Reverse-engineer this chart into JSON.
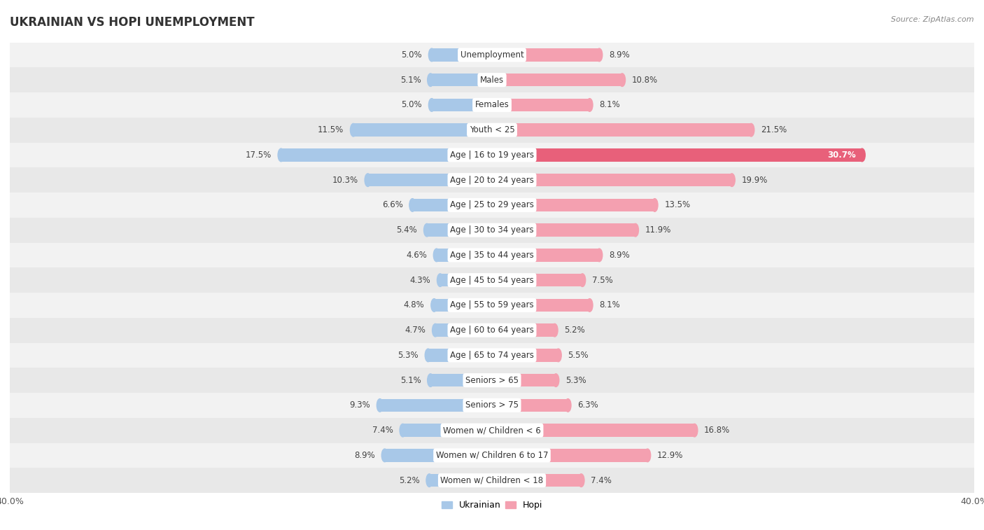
{
  "title": "UKRAINIAN VS HOPI UNEMPLOYMENT",
  "source": "Source: ZipAtlas.com",
  "categories": [
    "Unemployment",
    "Males",
    "Females",
    "Youth < 25",
    "Age | 16 to 19 years",
    "Age | 20 to 24 years",
    "Age | 25 to 29 years",
    "Age | 30 to 34 years",
    "Age | 35 to 44 years",
    "Age | 45 to 54 years",
    "Age | 55 to 59 years",
    "Age | 60 to 64 years",
    "Age | 65 to 74 years",
    "Seniors > 65",
    "Seniors > 75",
    "Women w/ Children < 6",
    "Women w/ Children 6 to 17",
    "Women w/ Children < 18"
  ],
  "ukrainian": [
    5.0,
    5.1,
    5.0,
    11.5,
    17.5,
    10.3,
    6.6,
    5.4,
    4.6,
    4.3,
    4.8,
    4.7,
    5.3,
    5.1,
    9.3,
    7.4,
    8.9,
    5.2
  ],
  "hopi": [
    8.9,
    10.8,
    8.1,
    21.5,
    30.7,
    19.9,
    13.5,
    11.9,
    8.9,
    7.5,
    8.1,
    5.2,
    5.5,
    5.3,
    6.3,
    16.8,
    12.9,
    7.4
  ],
  "ukrainian_color": "#a8c8e8",
  "hopi_color": "#f4a0b0",
  "hopi_highlight_color": "#e8607a",
  "row_bg_odd": "#f2f2f2",
  "row_bg_even": "#e8e8e8",
  "axis_limit": 40.0,
  "bar_height": 0.52,
  "legend_ukrainian": "Ukrainian",
  "legend_hopi": "Hopi"
}
